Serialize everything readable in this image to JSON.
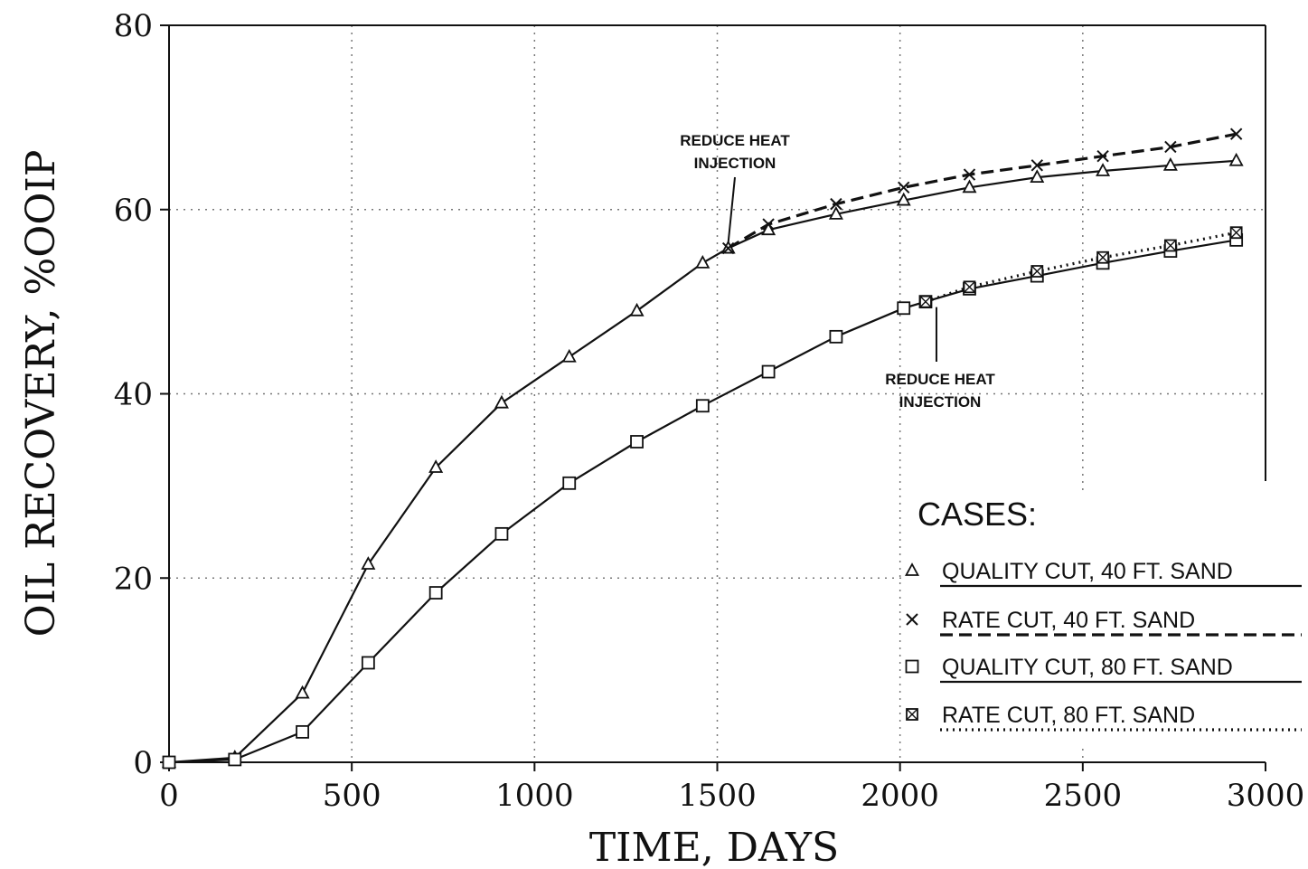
{
  "chart_data": {
    "type": "line",
    "title": "",
    "xlabel": "TIME, DAYS",
    "ylabel": "OIL RECOVERY, %OOIP",
    "xlim": [
      0,
      3000
    ],
    "ylim": [
      0,
      80
    ],
    "xticks": [
      0,
      500,
      1000,
      1500,
      2000,
      2500,
      3000
    ],
    "yticks": [
      0,
      20,
      40,
      60,
      80
    ],
    "grid": true,
    "legend": {
      "title": "CASES:",
      "placement": "lower-right"
    },
    "series": [
      {
        "name": "QUALITY CUT, 40 FT. SAND",
        "marker": "triangle",
        "line": "solid",
        "x": [
          0,
          180,
          365,
          545,
          730,
          910,
          1095,
          1280,
          1460,
          1530,
          1640,
          1825,
          2010,
          2190,
          2375,
          2555,
          2740,
          2920
        ],
        "y": [
          0,
          0.5,
          7.5,
          21.5,
          32,
          39,
          44,
          49,
          54.2,
          55.8,
          57.8,
          59.5,
          61,
          62.4,
          63.5,
          64.2,
          64.8,
          65.3
        ]
      },
      {
        "name": "RATE CUT, 40 FT. SAND",
        "marker": "x",
        "line": "dashed",
        "x": [
          1530,
          1640,
          1825,
          2010,
          2190,
          2375,
          2555,
          2740,
          2920
        ],
        "y": [
          55.8,
          58.4,
          60.6,
          62.4,
          63.8,
          64.8,
          65.8,
          66.8,
          68.2
        ]
      },
      {
        "name": "QUALITY CUT, 80 FT. SAND",
        "marker": "square",
        "line": "solid",
        "x": [
          0,
          180,
          365,
          545,
          730,
          910,
          1095,
          1280,
          1460,
          1640,
          1825,
          2010,
          2070,
          2190,
          2375,
          2555,
          2740,
          2920
        ],
        "y": [
          0,
          0.3,
          3.3,
          10.8,
          18.4,
          24.8,
          30.3,
          34.8,
          38.7,
          42.4,
          46.2,
          49.3,
          50,
          51.4,
          52.8,
          54.2,
          55.5,
          56.7
        ]
      },
      {
        "name": "RATE CUT, 80 FT. SAND",
        "marker": "square-x",
        "line": "dotted",
        "x": [
          2070,
          2190,
          2375,
          2555,
          2740,
          2920
        ],
        "y": [
          50,
          51.6,
          53.3,
          54.8,
          56.1,
          57.5
        ]
      }
    ],
    "annotations": [
      {
        "line1": "REDUCE HEAT",
        "line2": "INJECTION",
        "x": 1530,
        "y": 55.8
      },
      {
        "line1": "REDUCE HEAT",
        "line2": "INJECTION",
        "x": 2070,
        "y": 50
      }
    ]
  }
}
